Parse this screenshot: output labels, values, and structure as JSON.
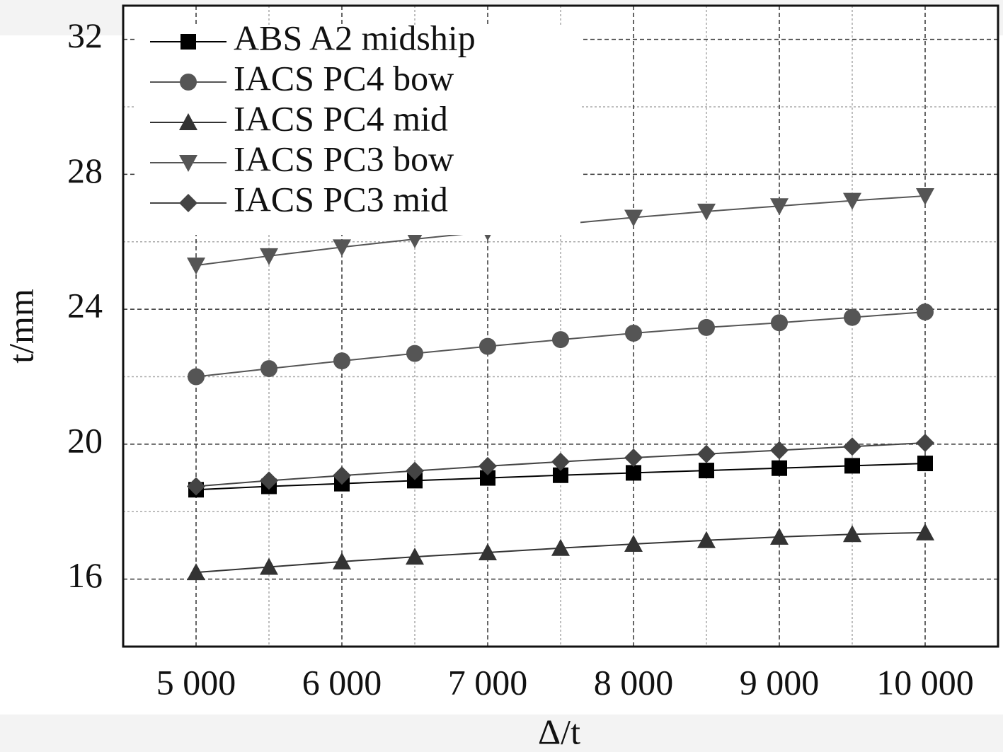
{
  "chart_data": {
    "type": "line",
    "x_label": "Δ/t",
    "y_label": "t/mm",
    "x": [
      5000,
      5500,
      6000,
      6500,
      7000,
      7500,
      8000,
      8500,
      9000,
      9500,
      10000
    ],
    "series": [
      {
        "name": "ABS A2 midship",
        "color": "#000000",
        "marker": "square",
        "values": [
          18.65,
          18.75,
          18.83,
          18.92,
          19.0,
          19.08,
          19.15,
          19.22,
          19.29,
          19.36,
          19.43
        ]
      },
      {
        "name": "IACS PC4 bow",
        "color": "#555555",
        "marker": "circle",
        "values": [
          22.0,
          22.24,
          22.47,
          22.69,
          22.9,
          23.1,
          23.29,
          23.46,
          23.6,
          23.76,
          23.92
        ]
      },
      {
        "name": "IACS PC4 mid",
        "color": "#333333",
        "marker": "triangle-up",
        "values": [
          16.2,
          16.36,
          16.52,
          16.66,
          16.79,
          16.92,
          17.04,
          17.15,
          17.25,
          17.33,
          17.38
        ]
      },
      {
        "name": "IACS PC3 bow",
        "color": "#555555",
        "marker": "triangle-down",
        "values": [
          25.3,
          25.58,
          25.84,
          26.08,
          26.3,
          26.52,
          26.72,
          26.9,
          27.06,
          27.22,
          27.36
        ]
      },
      {
        "name": "IACS PC3 mid",
        "color": "#444444",
        "marker": "diamond",
        "values": [
          18.75,
          18.92,
          19.07,
          19.21,
          19.35,
          19.48,
          19.6,
          19.71,
          19.82,
          19.93,
          20.04
        ]
      }
    ],
    "xlim": [
      4500,
      10500
    ],
    "ylim": [
      14,
      33
    ],
    "xticks": [
      {
        "value": 5000,
        "label": "5 000"
      },
      {
        "value": 6000,
        "label": "6 000"
      },
      {
        "value": 7000,
        "label": "7 000"
      },
      {
        "value": 8000,
        "label": "8 000"
      },
      {
        "value": 9000,
        "label": "9 000"
      },
      {
        "value": 10000,
        "label": "10 000"
      }
    ],
    "yticks": [
      16,
      20,
      24,
      28,
      32
    ],
    "x_minor_ticks": [
      5500,
      6500,
      7500,
      8500,
      9500
    ],
    "y_minor_ticks": [
      18,
      22,
      26,
      30
    ],
    "grid": true,
    "legend": "upper-left"
  }
}
